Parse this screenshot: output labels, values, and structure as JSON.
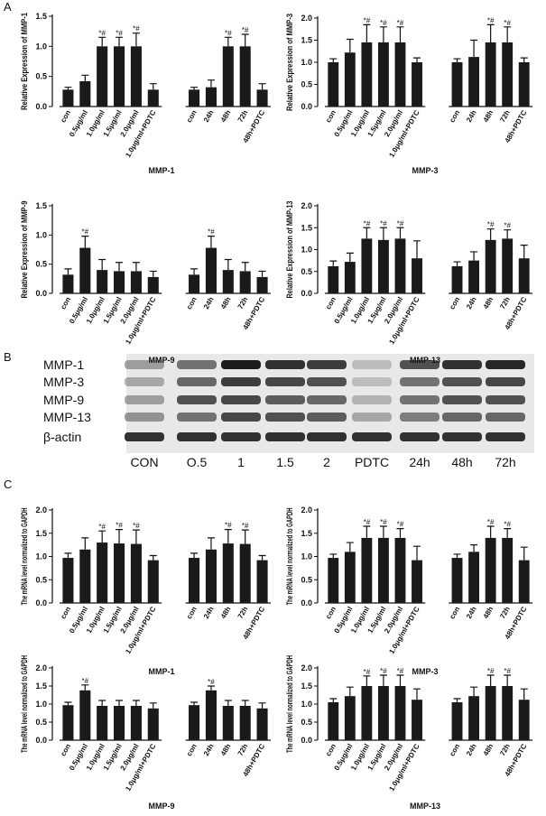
{
  "panel_labels": [
    "A",
    "B",
    "C"
  ],
  "blot": {
    "rows": [
      "MMP-1",
      "MMP-3",
      "MMP-9",
      "MMP-13",
      "β-actin"
    ],
    "lanes": [
      "CON",
      "O.5",
      "1",
      "1.5",
      "2",
      "PDTC",
      "24h",
      "48h",
      "72h"
    ]
  },
  "chart_data": [
    {
      "type": "bar",
      "ylabel": "Relative Expression of MMP-1",
      "xlabel": "MMP-1",
      "color": "#1a1a1a",
      "categories": [
        "con",
        "0.5μg/ml",
        "1.0μg/ml",
        "1.5μg/ml",
        "2.0μg/ml",
        "1.0μg/ml+PDTC",
        "con",
        "24h",
        "48h",
        "72h",
        "48h+PDTC"
      ],
      "values": [
        0.28,
        0.42,
        1.0,
        1.0,
        1.0,
        0.28,
        0.28,
        0.32,
        1.0,
        1.0,
        0.28
      ],
      "errors": [
        0.04,
        0.1,
        0.15,
        0.15,
        0.22,
        0.1,
        0.04,
        0.12,
        0.15,
        0.2,
        0.1
      ],
      "markers": [
        null,
        null,
        "*#",
        "*#",
        "*#",
        null,
        null,
        null,
        "*#",
        "*#",
        null
      ],
      "ylim": [
        0,
        1.5
      ],
      "yticks": [
        {
          "value": 0,
          "label": "0.0"
        },
        0.5,
        {
          "value": 1,
          "label": "1.0"
        },
        1.5
      ]
    },
    {
      "type": "bar",
      "ylabel": "Relative Expression of MMP-3",
      "xlabel": "MMP-3",
      "color": "#1a1a1a",
      "categories": [
        "con",
        "0.5μg/ml",
        "1.0μg/ml",
        "1.5μg/ml",
        "2.0μg/ml",
        "1.0μg/ml+PDTC",
        "con",
        "24h",
        "48h",
        "72h",
        "48h+PDTC"
      ],
      "values": [
        1.0,
        1.22,
        1.45,
        1.45,
        1.45,
        1.0,
        1.0,
        1.12,
        1.45,
        1.45,
        1.0
      ],
      "errors": [
        0.08,
        0.3,
        0.4,
        0.35,
        0.35,
        0.1,
        0.08,
        0.38,
        0.4,
        0.35,
        0.1
      ],
      "markers": [
        null,
        null,
        "*#",
        "*#",
        "*#",
        null,
        null,
        null,
        "*#",
        "*#",
        null
      ],
      "ylim": [
        0,
        2
      ],
      "yticks": [
        {
          "value": 0,
          "label": "0.0"
        },
        0.5,
        {
          "value": 1,
          "label": "1.0"
        },
        1.5,
        {
          "value": 2,
          "label": "2.0"
        }
      ]
    },
    {
      "type": "bar",
      "ylabel": "Relative Expression of MMP-9",
      "xlabel": "MMP-9",
      "color": "#1a1a1a",
      "categories": [
        "con",
        "0.5μg/ml",
        "1.0μg/ml",
        "1.5μg/ml",
        "2.0μg/ml",
        "1.0μg/ml+PDTC",
        "con",
        "24h",
        "48h",
        "72h",
        "48h+PDTC"
      ],
      "values": [
        0.32,
        0.78,
        0.4,
        0.38,
        0.38,
        0.28,
        0.32,
        0.78,
        0.4,
        0.38,
        0.28
      ],
      "errors": [
        0.1,
        0.2,
        0.18,
        0.15,
        0.15,
        0.1,
        0.1,
        0.2,
        0.18,
        0.15,
        0.1
      ],
      "markers": [
        null,
        "*#",
        null,
        null,
        null,
        null,
        null,
        "*#",
        null,
        null,
        null
      ],
      "ylim": [
        0,
        1.5
      ],
      "yticks": [
        {
          "value": 0,
          "label": "0.0"
        },
        0.5,
        {
          "value": 1,
          "label": "1.0"
        },
        1.5
      ]
    },
    {
      "type": "bar",
      "ylabel": "Relative Expression of MMP-13",
      "xlabel": "MMP-13",
      "color": "#1a1a1a",
      "categories": [
        "con",
        "0.5μg/ml",
        "1.0μg/ml",
        "1.5μg/ml",
        "2.0μg/ml",
        "1.0μg/ml+PDTC",
        "con",
        "24h",
        "48h",
        "72h",
        "48h+PDTC"
      ],
      "values": [
        0.62,
        0.72,
        1.25,
        1.22,
        1.25,
        0.8,
        0.62,
        0.75,
        1.22,
        1.25,
        0.8
      ],
      "errors": [
        0.12,
        0.2,
        0.25,
        0.28,
        0.25,
        0.4,
        0.1,
        0.2,
        0.25,
        0.2,
        0.3
      ],
      "markers": [
        null,
        null,
        "*#",
        "*#",
        "*#",
        null,
        null,
        null,
        "*#",
        "*#",
        null
      ],
      "ylim": [
        0,
        2
      ],
      "yticks": [
        {
          "value": 0,
          "label": "0.0"
        },
        0.5,
        {
          "value": 1,
          "label": "1.0"
        },
        1.5,
        {
          "value": 2,
          "label": "2.0"
        }
      ]
    },
    {
      "type": "bar",
      "ylabel": "The mRNA level normalized to GAPDH",
      "xlabel": "MMP-1",
      "color": "#1a1a1a",
      "categories": [
        "con",
        "0.5μg/ml",
        "1.0μg/ml",
        "1.5μg/ml",
        "2.0μg/ml",
        "1.0μg/ml+PDTC",
        "con",
        "24h",
        "48h",
        "72h",
        "48h+PDTC"
      ],
      "values": [
        0.97,
        1.15,
        1.3,
        1.28,
        1.27,
        0.92,
        0.97,
        1.15,
        1.28,
        1.27,
        0.92
      ],
      "errors": [
        0.1,
        0.25,
        0.25,
        0.3,
        0.3,
        0.1,
        0.1,
        0.25,
        0.3,
        0.3,
        0.1
      ],
      "markers": [
        null,
        null,
        "*#",
        "*#",
        "*#",
        null,
        null,
        null,
        "*#",
        "*#",
        null
      ],
      "ylim": [
        0,
        2
      ],
      "yticks": [
        {
          "value": 0,
          "label": "0.0"
        },
        0.5,
        {
          "value": 1,
          "label": "1.0"
        },
        1.5,
        {
          "value": 2,
          "label": "2.0"
        }
      ]
    },
    {
      "type": "bar",
      "ylabel": "The mRNA level normalized to GAPDH",
      "xlabel": "MMP-3",
      "color": "#1a1a1a",
      "categories": [
        "con",
        "0.5μg/ml",
        "1.0μg/ml",
        "1.5μg/ml",
        "2.0μg/ml",
        "1.0μg/ml+PDTC",
        "con",
        "24h",
        "48h",
        "72h",
        "48h+PDTC"
      ],
      "values": [
        0.97,
        1.1,
        1.4,
        1.4,
        1.4,
        0.92,
        0.97,
        1.1,
        1.4,
        1.4,
        0.92
      ],
      "errors": [
        0.08,
        0.2,
        0.25,
        0.25,
        0.2,
        0.3,
        0.08,
        0.15,
        0.25,
        0.2,
        0.28
      ],
      "markers": [
        null,
        null,
        "*#",
        "*#",
        "*#",
        null,
        null,
        null,
        "*#",
        "*#",
        null
      ],
      "ylim": [
        0,
        2
      ],
      "yticks": [
        {
          "value": 0,
          "label": "0.0"
        },
        0.5,
        {
          "value": 1,
          "label": "1.0"
        },
        1.5,
        {
          "value": 2,
          "label": "2.0"
        }
      ]
    },
    {
      "type": "bar",
      "ylabel": "The mRNA level normalized to GAPDH",
      "xlabel": "MMP-9",
      "color": "#1a1a1a",
      "categories": [
        "con",
        "0.5μg/ml",
        "1.0μg/ml",
        "1.5μg/ml",
        "2.0μg/ml",
        "1.0μg/ml+PDTC",
        "con",
        "24h",
        "48h",
        "72h",
        "48h+PDTC"
      ],
      "values": [
        0.97,
        1.38,
        0.95,
        0.95,
        0.95,
        0.88,
        0.97,
        1.38,
        0.95,
        0.95,
        0.88
      ],
      "errors": [
        0.08,
        0.15,
        0.15,
        0.15,
        0.15,
        0.15,
        0.08,
        0.12,
        0.15,
        0.15,
        0.15
      ],
      "markers": [
        null,
        "*#",
        null,
        null,
        null,
        null,
        null,
        "*#",
        null,
        null,
        null
      ],
      "ylim": [
        0,
        2
      ],
      "yticks": [
        {
          "value": 0,
          "label": "0.0"
        },
        0.5,
        {
          "value": 1,
          "label": "1.0"
        },
        1.5,
        {
          "value": 2,
          "label": "2.0"
        }
      ]
    },
    {
      "type": "bar",
      "ylabel": "The mRNA level normalized to GAPDH",
      "xlabel": "MMP-13",
      "color": "#1a1a1a",
      "categories": [
        "con",
        "0.5μg/ml",
        "1.0μg/ml",
        "1.5μg/ml",
        "2.0μg/ml",
        "1.0μg/ml+PDTC",
        "con",
        "24h",
        "48h",
        "72h",
        "48h+PDTC"
      ],
      "values": [
        1.05,
        1.22,
        1.5,
        1.5,
        1.5,
        1.12,
        1.05,
        1.22,
        1.5,
        1.5,
        1.12
      ],
      "errors": [
        0.1,
        0.25,
        0.28,
        0.3,
        0.3,
        0.3,
        0.1,
        0.25,
        0.3,
        0.3,
        0.3
      ],
      "markers": [
        null,
        null,
        "*#",
        "*#",
        "*#",
        null,
        null,
        null,
        "*#",
        "*#",
        null
      ],
      "ylim": [
        0,
        2
      ],
      "yticks": [
        {
          "value": 0,
          "label": "0.0"
        },
        0.5,
        {
          "value": 1,
          "label": "1.0"
        },
        1.5,
        {
          "value": 2,
          "label": "2.0"
        }
      ]
    }
  ]
}
